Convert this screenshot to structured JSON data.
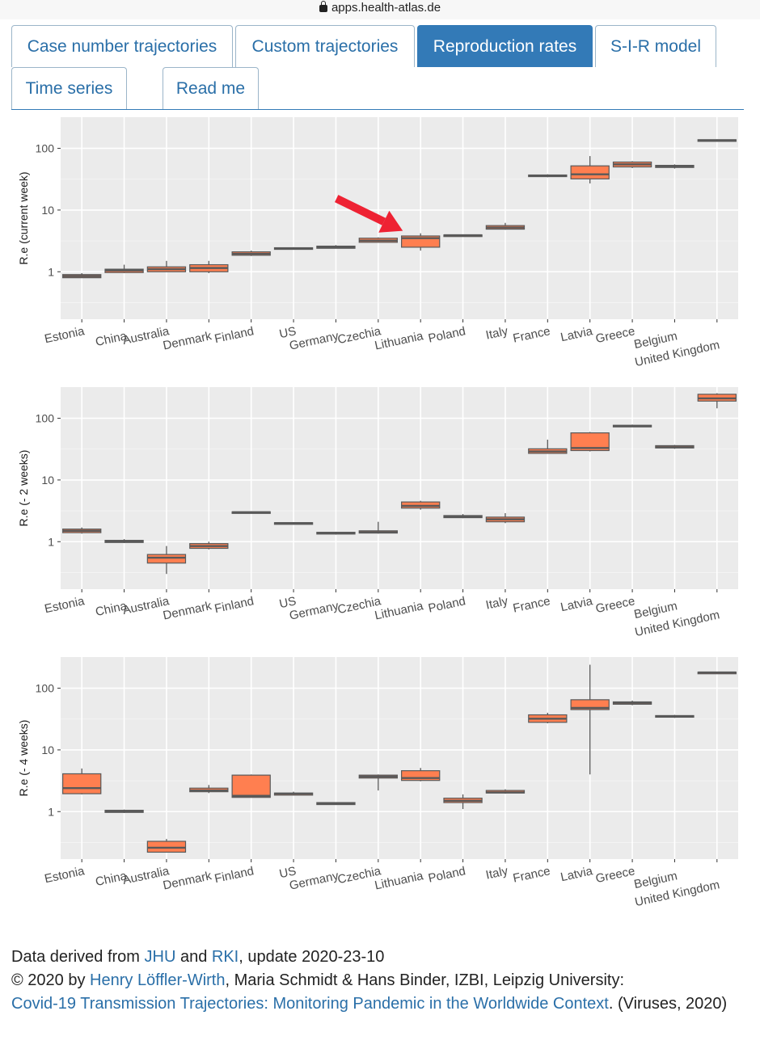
{
  "browser": {
    "url": "apps.health-atlas.de"
  },
  "tabs": [
    {
      "label": "Case number trajectories",
      "active": false
    },
    {
      "label": "Custom trajectories",
      "active": false
    },
    {
      "label": "Reproduction rates",
      "active": true
    },
    {
      "label": "S-I-R model",
      "active": false
    },
    {
      "label": "Time series",
      "active": false
    },
    {
      "label": "Read me",
      "active": false
    }
  ],
  "colors": {
    "box_fill": "#ff7f50",
    "panel_bg": "#ebebeb",
    "line": "#595959",
    "arrow": "#ee2233",
    "link": "#2a6fa8",
    "tab_active": "#337ab7"
  },
  "chart_data": [
    {
      "type": "box",
      "ylabel": "R.e (current week)",
      "yscale": "log",
      "yticks": [
        "1",
        "10",
        "100"
      ],
      "categories": [
        "Estonia",
        "China",
        "Australia",
        "Denmark",
        "Finland",
        "US",
        "Germany",
        "Czechia",
        "Lithuania",
        "Poland",
        "Italy",
        "France",
        "Latvia",
        "Greece",
        "Belgium",
        "United Kingdom"
      ],
      "boxes": [
        {
          "min": 0.8,
          "q1": 0.8,
          "median": 0.85,
          "q3": 0.9,
          "max": 0.95
        },
        {
          "min": 0.95,
          "q1": 0.97,
          "median": 1.05,
          "q3": 1.1,
          "max": 1.3
        },
        {
          "min": 1.0,
          "q1": 1.0,
          "median": 1.1,
          "q3": 1.2,
          "max": 1.5
        },
        {
          "min": 0.95,
          "q1": 1.0,
          "median": 1.15,
          "q3": 1.3,
          "max": 1.5
        },
        {
          "min": 1.8,
          "q1": 1.85,
          "median": 1.95,
          "q3": 2.1,
          "max": 2.2
        },
        {
          "min": 2.3,
          "q1": 2.35,
          "median": 2.4,
          "q3": 2.45,
          "max": 2.5
        },
        {
          "min": 2.4,
          "q1": 2.4,
          "median": 2.5,
          "q3": 2.6,
          "max": 2.7
        },
        {
          "min": 3.0,
          "q1": 3.0,
          "median": 3.2,
          "q3": 3.5,
          "max": 3.6
        },
        {
          "min": 2.2,
          "q1": 2.5,
          "median": 3.5,
          "q3": 3.8,
          "max": 4.2
        },
        {
          "min": 3.8,
          "q1": 3.85,
          "median": 3.9,
          "q3": 3.95,
          "max": 4.0
        },
        {
          "min": 4.8,
          "q1": 4.9,
          "median": 5.2,
          "q3": 5.6,
          "max": 6.2
        },
        {
          "min": 34,
          "q1": 35,
          "median": 36,
          "q3": 37,
          "max": 38
        },
        {
          "min": 27,
          "q1": 32,
          "median": 38,
          "q3": 52,
          "max": 75
        },
        {
          "min": 48,
          "q1": 50,
          "median": 55,
          "q3": 60,
          "max": 62
        },
        {
          "min": 47,
          "q1": 49,
          "median": 51,
          "q3": 53,
          "max": 55
        },
        {
          "min": 130,
          "q1": 132,
          "median": 135,
          "q3": 138,
          "max": 140
        }
      ],
      "annotation": "arrow"
    },
    {
      "type": "box",
      "ylabel": "R.e (- 2 weeks)",
      "yscale": "log",
      "yticks": [
        "1",
        "10",
        "100"
      ],
      "categories": [
        "Estonia",
        "China",
        "Australia",
        "Denmark",
        "Finland",
        "US",
        "Germany",
        "Czechia",
        "Lithuania",
        "Poland",
        "Italy",
        "France",
        "Latvia",
        "Greece",
        "Belgium",
        "United Kingdom"
      ],
      "boxes": [
        {
          "min": 1.35,
          "q1": 1.4,
          "median": 1.5,
          "q3": 1.6,
          "max": 1.7
        },
        {
          "min": 0.95,
          "q1": 0.97,
          "median": 1.0,
          "q3": 1.05,
          "max": 1.1
        },
        {
          "min": 0.3,
          "q1": 0.45,
          "median": 0.55,
          "q3": 0.62,
          "max": 0.85
        },
        {
          "min": 0.75,
          "q1": 0.78,
          "median": 0.85,
          "q3": 0.93,
          "max": 1.0
        },
        {
          "min": 2.9,
          "q1": 2.95,
          "median": 3.0,
          "q3": 3.05,
          "max": 3.1
        },
        {
          "min": 1.95,
          "q1": 1.97,
          "median": 2.0,
          "q3": 2.03,
          "max": 2.05
        },
        {
          "min": 1.3,
          "q1": 1.33,
          "median": 1.38,
          "q3": 1.42,
          "max": 1.45
        },
        {
          "min": 1.35,
          "q1": 1.38,
          "median": 1.42,
          "q3": 1.5,
          "max": 2.1
        },
        {
          "min": 3.3,
          "q1": 3.5,
          "median": 3.8,
          "q3": 4.4,
          "max": 4.6
        },
        {
          "min": 2.4,
          "q1": 2.45,
          "median": 2.55,
          "q3": 2.65,
          "max": 2.8
        },
        {
          "min": 2.0,
          "q1": 2.1,
          "median": 2.3,
          "q3": 2.5,
          "max": 2.9
        },
        {
          "min": 27,
          "q1": 27,
          "median": 29,
          "q3": 32,
          "max": 45
        },
        {
          "min": 29,
          "q1": 30,
          "median": 33,
          "q3": 58,
          "max": 60
        },
        {
          "min": 72,
          "q1": 73,
          "median": 75,
          "q3": 77,
          "max": 79
        },
        {
          "min": 32,
          "q1": 33,
          "median": 34,
          "q3": 36,
          "max": 37
        },
        {
          "min": 145,
          "q1": 190,
          "median": 210,
          "q3": 245,
          "max": 255
        }
      ]
    },
    {
      "type": "box",
      "ylabel": "R.e (- 4 weeks)",
      "yscale": "log",
      "yticks": [
        "1",
        "10",
        "100"
      ],
      "categories": [
        "Estonia",
        "China",
        "Australia",
        "Denmark",
        "Finland",
        "US",
        "Germany",
        "Czechia",
        "Lithuania",
        "Poland",
        "Italy",
        "France",
        "Latvia",
        "Greece",
        "Belgium",
        "United Kingdom"
      ],
      "boxes": [
        {
          "min": 1.9,
          "q1": 1.95,
          "median": 2.4,
          "q3": 4.1,
          "max": 5.0
        },
        {
          "min": 0.95,
          "q1": 0.97,
          "median": 1.0,
          "q3": 1.05,
          "max": 1.08
        },
        {
          "min": 0.22,
          "q1": 0.22,
          "median": 0.26,
          "q3": 0.33,
          "max": 0.36
        },
        {
          "min": 2.0,
          "q1": 2.1,
          "median": 2.2,
          "q3": 2.4,
          "max": 2.7
        },
        {
          "min": 1.7,
          "q1": 1.7,
          "median": 1.8,
          "q3": 3.9,
          "max": 4.0
        },
        {
          "min": 1.85,
          "q1": 1.85,
          "median": 1.95,
          "q3": 2.0,
          "max": 2.1
        },
        {
          "min": 1.3,
          "q1": 1.3,
          "median": 1.35,
          "q3": 1.4,
          "max": 1.4
        },
        {
          "min": 2.2,
          "q1": 3.5,
          "median": 3.7,
          "q3": 3.9,
          "max": 4.0
        },
        {
          "min": 3.1,
          "q1": 3.2,
          "median": 3.5,
          "q3": 4.6,
          "max": 5.1
        },
        {
          "min": 1.1,
          "q1": 1.4,
          "median": 1.5,
          "q3": 1.65,
          "max": 1.9
        },
        {
          "min": 1.95,
          "q1": 2.0,
          "median": 2.05,
          "q3": 2.2,
          "max": 2.3
        },
        {
          "min": 27,
          "q1": 28,
          "median": 32,
          "q3": 37,
          "max": 40
        },
        {
          "min": 4,
          "q1": 45,
          "median": 48,
          "q3": 65,
          "max": 240
        },
        {
          "min": 53,
          "q1": 55,
          "median": 58,
          "q3": 60,
          "max": 63
        },
        {
          "min": 33,
          "q1": 34,
          "median": 35,
          "q3": 36,
          "max": 37
        },
        {
          "min": 175,
          "q1": 177,
          "median": 180,
          "q3": 182,
          "max": 185
        }
      ]
    }
  ],
  "footer": {
    "line1_prefix": "Data derived from ",
    "jhu": "JHU",
    "and": " and ",
    "rki": "RKI",
    "line1_suffix": ", update 2020-23-10",
    "line2_prefix": "© 2020 by ",
    "author_link": "Henry Löffler-Wirth",
    "line2_suffix": ", Maria Schmidt & Hans Binder, IZBI, Leipzig University:",
    "paper_link": "Covid-19 Transmission Trajectories: Monitoring Pandemic in the Worldwide Context",
    "line3_suffix": ". (Viruses, 2020)"
  }
}
